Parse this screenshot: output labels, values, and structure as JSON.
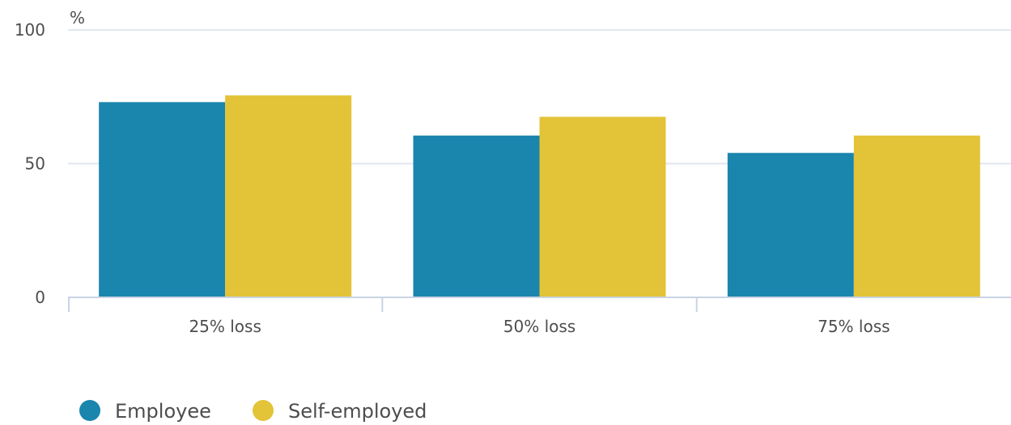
{
  "chart_data": {
    "type": "bar",
    "title": "",
    "xlabel": "",
    "ylabel": "",
    "y_unit": "%",
    "ylim": [
      0,
      100
    ],
    "yticks": [
      0,
      50,
      100
    ],
    "grid": true,
    "legend_position": "bottom-left",
    "categories": [
      "25% loss",
      "50% loss",
      "75% loss"
    ],
    "series": [
      {
        "name": "Employee",
        "color": "#1a85ad",
        "values": [
          73,
          60.5,
          54
        ]
      },
      {
        "name": "Self-employed",
        "color": "#e3c337",
        "values": [
          75.5,
          67.5,
          60.5
        ]
      }
    ]
  }
}
